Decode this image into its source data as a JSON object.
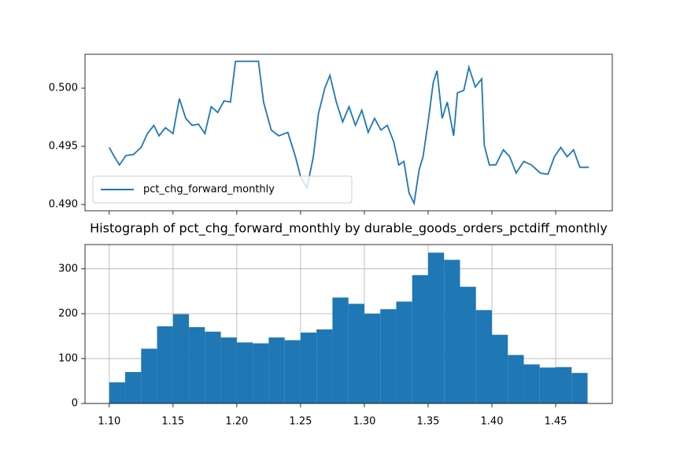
{
  "chart_data": [
    {
      "type": "line",
      "x": [
        1.1,
        1.104,
        1.108,
        1.113,
        1.119,
        1.125,
        1.13,
        1.135,
        1.139,
        1.144,
        1.15,
        1.155,
        1.16,
        1.165,
        1.17,
        1.175,
        1.18,
        1.185,
        1.19,
        1.195,
        1.199,
        1.206,
        1.212,
        1.217,
        1.221,
        1.227,
        1.233,
        1.24,
        1.246,
        1.25,
        1.255,
        1.26,
        1.264,
        1.269,
        1.273,
        1.278,
        1.283,
        1.288,
        1.293,
        1.298,
        1.303,
        1.308,
        1.313,
        1.318,
        1.323,
        1.327,
        1.331,
        1.335,
        1.339,
        1.343,
        1.346,
        1.35,
        1.354,
        1.357,
        1.361,
        1.365,
        1.37,
        1.373,
        1.378,
        1.382,
        1.387,
        1.392,
        1.394,
        1.398,
        1.403,
        1.409,
        1.414,
        1.419,
        1.425,
        1.431,
        1.438,
        1.444,
        1.449,
        1.454,
        1.459,
        1.464,
        1.469,
        1.476
      ],
      "series": [
        {
          "name": "pct_chg_forward_monthly",
          "color": "#1f77b4",
          "values": [
            0.4949,
            0.4941,
            0.4934,
            0.4942,
            0.4943,
            0.4949,
            0.4961,
            0.4968,
            0.4959,
            0.4966,
            0.4961,
            0.4991,
            0.4974,
            0.4968,
            0.4969,
            0.4961,
            0.4984,
            0.4979,
            0.4989,
            0.4988,
            0.5023,
            0.5023,
            0.5023,
            0.5023,
            0.4988,
            0.4964,
            0.4959,
            0.4962,
            0.4941,
            0.4924,
            0.4914,
            0.4941,
            0.4978,
            0.5,
            0.5011,
            0.4988,
            0.4971,
            0.4984,
            0.4968,
            0.4981,
            0.4962,
            0.4974,
            0.4964,
            0.4968,
            0.4954,
            0.4934,
            0.4937,
            0.491,
            0.4901,
            0.493,
            0.4941,
            0.4971,
            0.5005,
            0.5015,
            0.4974,
            0.4988,
            0.4959,
            0.4996,
            0.4998,
            0.5018,
            0.5001,
            0.5008,
            0.4951,
            0.4934,
            0.4934,
            0.4947,
            0.4941,
            0.4927,
            0.4937,
            0.4934,
            0.4927,
            0.4926,
            0.4941,
            0.4949,
            0.4941,
            0.4947,
            0.4932,
            0.4932
          ]
        }
      ],
      "xlim": [
        1.081,
        1.4944
      ],
      "xticks": [
        1.1,
        1.15,
        1.2,
        1.25,
        1.3,
        1.35,
        1.4,
        1.45
      ],
      "xtick_labels": false,
      "ylim": [
        0.48946,
        0.50291
      ],
      "yticks": [
        {
          "value": 0.49,
          "label": "0.490"
        },
        0.495,
        {
          "value": 0.5,
          "label": "0.500"
        }
      ],
      "grid": false,
      "legend": "lower left"
    },
    {
      "type": "histogram",
      "title": "Histograph of pct_chg_forward_monthly by durable_goods_orders_pctdiff_monthly",
      "bins": [
        1.1,
        1.1125,
        1.125,
        1.1375,
        1.15,
        1.1625,
        1.175,
        1.1875,
        1.2,
        1.2125,
        1.225,
        1.2375,
        1.25,
        1.2625,
        1.275,
        1.2875,
        1.3,
        1.3125,
        1.325,
        1.3375,
        1.35,
        1.3625,
        1.375,
        1.3875,
        1.4,
        1.4125,
        1.425,
        1.4375,
        1.45,
        1.4625,
        1.475
      ],
      "values": [
        47,
        70,
        122,
        172,
        199,
        170,
        160,
        147,
        136,
        134,
        147,
        141,
        158,
        165,
        236,
        222,
        200,
        210,
        227,
        286,
        336,
        320,
        260,
        208,
        153,
        108,
        87,
        80,
        81,
        68
      ],
      "color": "#1f77b4",
      "xlim": [
        1.081,
        1.4944
      ],
      "xticks": [
        {
          "value": 1.1,
          "label": "1.10"
        },
        1.15,
        {
          "value": 1.2,
          "label": "1.20"
        },
        1.25,
        {
          "value": 1.3,
          "label": "1.30"
        },
        1.35,
        {
          "value": 1.4,
          "label": "1.40"
        },
        1.45
      ],
      "ylim": [
        0,
        354
      ],
      "yticks": [
        0,
        100,
        200,
        300
      ],
      "grid": true
    }
  ]
}
